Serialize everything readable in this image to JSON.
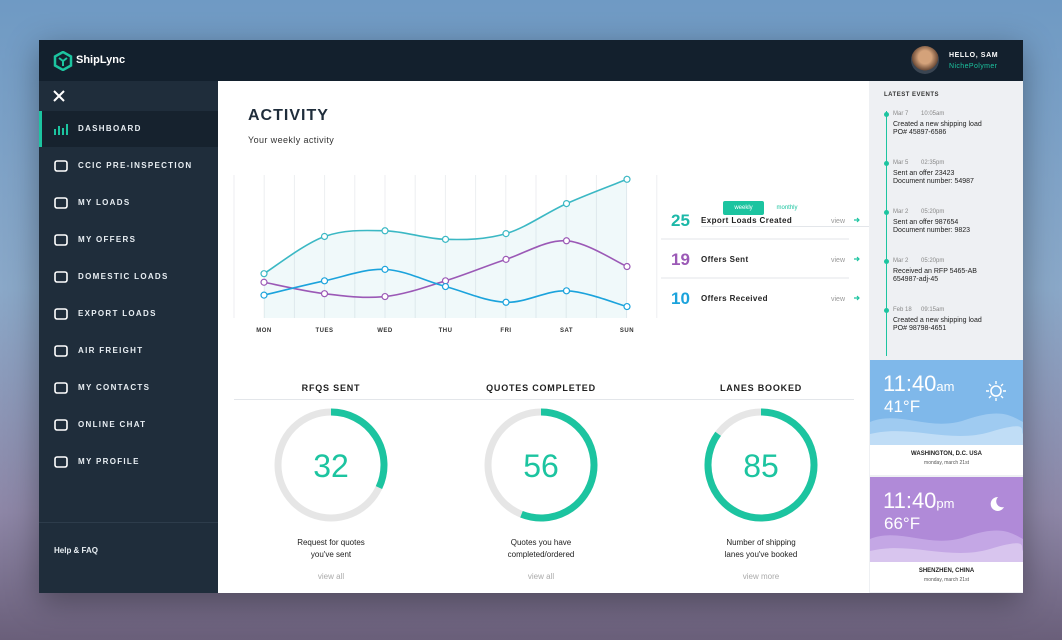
{
  "brand": "ShipLync",
  "user": {
    "greeting": "HELLO, SAM",
    "company": "NichePolymer"
  },
  "nav": {
    "items": [
      "DASHBOARD",
      "CCIC PRE-INSPECTION",
      "MY LOADS",
      "MY OFFERS",
      "DOMESTIC LOADS",
      "EXPORT LOADS",
      "AIR FREIGHT",
      "MY CONTACTS",
      "ONLINE CHAT",
      "MY PROFILE"
    ],
    "help": "Help & FAQ"
  },
  "activity": {
    "title": "ACTIVITY",
    "subtitle": "Your weekly activity",
    "tabs": [
      "weekly",
      "monthly"
    ]
  },
  "chart_data": {
    "type": "line",
    "categories": [
      "MON",
      "TUES",
      "WED",
      "THU",
      "FRI",
      "SAT",
      "SUN"
    ],
    "ylim": [
      0,
      100
    ],
    "series": [
      {
        "color": "#3bb8c4",
        "values": [
          31,
          57,
          61,
          55,
          59,
          80,
          97
        ]
      },
      {
        "color": "#9b59b6",
        "values": [
          25,
          17,
          15,
          26,
          41,
          54,
          36
        ]
      },
      {
        "color": "#1ba3dc",
        "values": [
          16,
          26,
          34,
          22,
          11,
          19,
          8
        ]
      }
    ]
  },
  "stats": [
    {
      "value": 25,
      "label": "Export Loads Created",
      "link": "view",
      "color": "#1cb8a8"
    },
    {
      "value": 19,
      "label": "Offers Sent",
      "link": "view",
      "color": "#9b59b6"
    },
    {
      "value": 10,
      "label": "Offers Received",
      "link": "view",
      "color": "#1ba3dc"
    }
  ],
  "gauges": [
    {
      "title": "RFQS SENT",
      "value": 32,
      "desc": [
        "Request for quotes",
        "you've sent"
      ],
      "link": "view all"
    },
    {
      "title": "QUOTES COMPLETED",
      "value": 56,
      "desc": [
        "Quotes you have",
        "completed/ordered"
      ],
      "link": "view all"
    },
    {
      "title": "LANES BOOKED",
      "value": 85,
      "desc": [
        "Number of shipping",
        "lanes you've booked"
      ],
      "link": "view more"
    }
  ],
  "events": {
    "title": "LATEST EVENTS",
    "items": [
      {
        "date": "Mar 7",
        "time": "10:05am",
        "lines": [
          "Created a new shipping load",
          "PO# 45897-6586"
        ]
      },
      {
        "date": "Mar 5",
        "time": "02:35pm",
        "lines": [
          "Sent an offer 23423",
          "Document number: 54987"
        ]
      },
      {
        "date": "Mar 2",
        "time": "05:20pm",
        "lines": [
          "Sent an offer 987654",
          "Document number: 9823"
        ]
      },
      {
        "date": "Mar 2",
        "time": "05:20pm",
        "lines": [
          "Received an RFP 5465-AB",
          "654987-adj-45"
        ]
      },
      {
        "date": "Feb 18",
        "time": "09:15am",
        "lines": [
          "Created a new shipping load",
          "PO# 98798-4651"
        ]
      }
    ]
  },
  "weather": [
    {
      "time": "11:40",
      "ampm": "am",
      "temp": "41°F",
      "city": "WASHINGTON, D.C. USA",
      "date": "monday, march 21st"
    },
    {
      "time": "11:40",
      "ampm": "pm",
      "temp": "66°F",
      "city": "SHENZHEN, CHINA",
      "date": "monday, march 21st"
    }
  ]
}
